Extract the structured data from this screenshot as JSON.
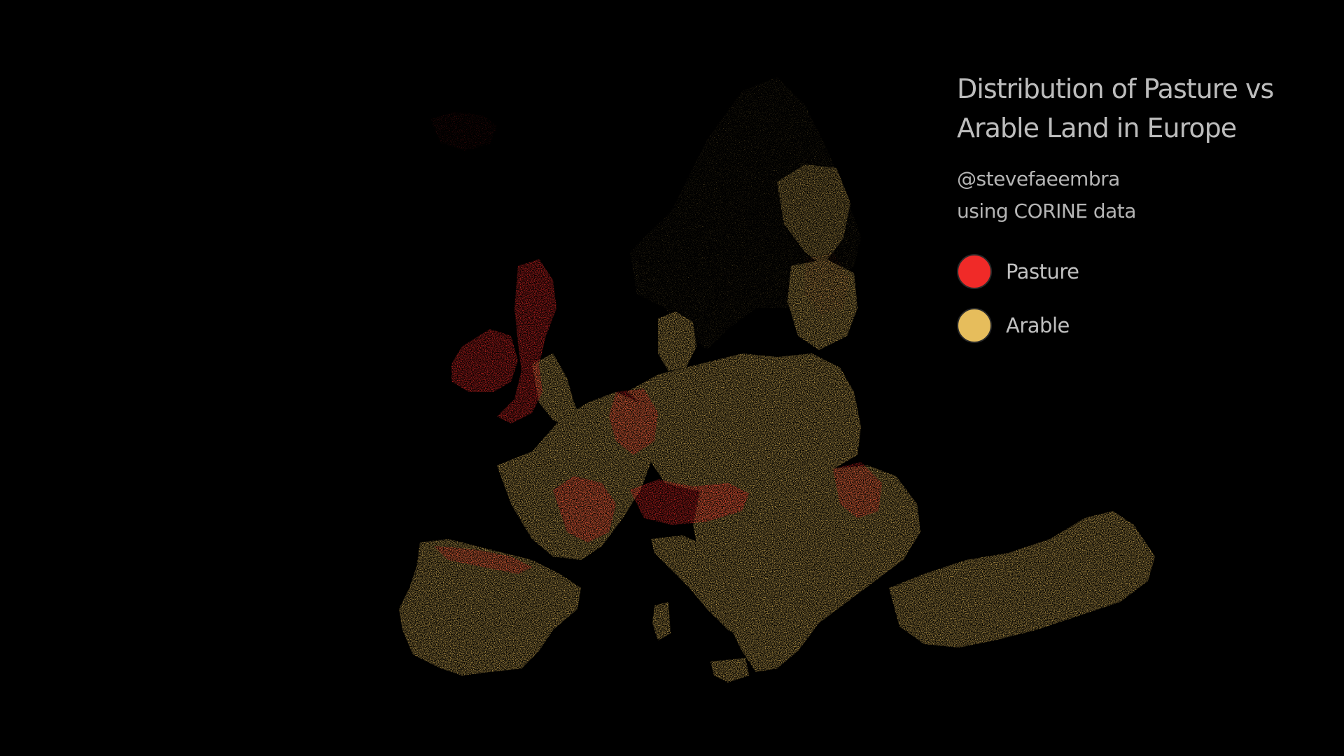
{
  "title_lines": [
    "Distribution of Pasture vs",
    "Arable Land in Europe"
  ],
  "credits": [
    "@stevefaeembra",
    "using CORINE data"
  ],
  "legend": [
    {
      "label": "Pasture",
      "color": "#f02a28"
    },
    {
      "label": "Arable",
      "color": "#e6bd5c"
    }
  ],
  "colors": {
    "background": "#000000",
    "pasture": "#f02a28",
    "arable": "#e6bd5c"
  }
}
